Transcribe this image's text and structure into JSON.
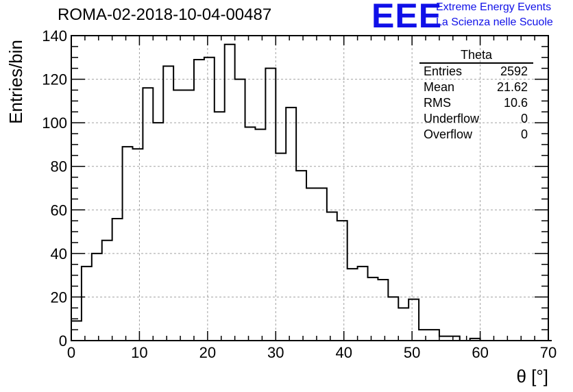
{
  "header": {
    "title": "ROMA-02-2018-10-04-00487",
    "logo": {
      "letters": "EEE",
      "line1": "Extreme Energy Events",
      "line2": "La Scienza nelle Scuole",
      "color": "#1010e8"
    }
  },
  "stats_box": {
    "title": "Theta",
    "rows": [
      {
        "label": "Entries",
        "value": "2592"
      },
      {
        "label": "Mean",
        "value": "21.62"
      },
      {
        "label": "RMS",
        "value": "10.6"
      },
      {
        "label": "Underflow",
        "value": "0"
      },
      {
        "label": "Overflow",
        "value": "0"
      }
    ]
  },
  "chart_data": {
    "type": "histogram",
    "title": "ROMA-02-2018-10-04-00487",
    "xlabel": "θ [°]",
    "ylabel": "Entries/bin",
    "xlim": [
      0,
      70
    ],
    "ylim": [
      0,
      140
    ],
    "x_ticks": [
      0,
      10,
      20,
      30,
      40,
      50,
      60,
      70
    ],
    "y_ticks": [
      0,
      20,
      40,
      60,
      80,
      100,
      120,
      140
    ],
    "grid": true,
    "bin_width": 1.5,
    "bin_edges_start": 0,
    "values": [
      9,
      34,
      40,
      46,
      56,
      89,
      88,
      116,
      100,
      126,
      115,
      115,
      129,
      130,
      105,
      136,
      120,
      98,
      97,
      125,
      86,
      107,
      78,
      70,
      70,
      59,
      55,
      33,
      34,
      29,
      28,
      20,
      15,
      19,
      5,
      5,
      2,
      2,
      0,
      1,
      0,
      0,
      0,
      0,
      0,
      0,
      0
    ],
    "line_color": "#000000"
  }
}
